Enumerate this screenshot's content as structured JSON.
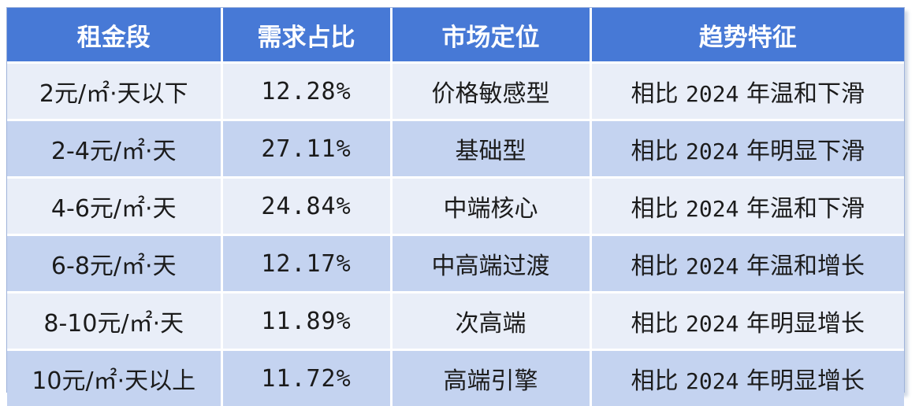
{
  "table": {
    "headers": [
      "租金段",
      "需求占比",
      "市场定位",
      "趋势特征"
    ],
    "rows": [
      {
        "range": "2元/㎡·天以下",
        "share": "12.28%",
        "position": "价格敏感型",
        "trend_prefix": "相比",
        "trend_year": "2024",
        "trend_suffix": "年温和下滑"
      },
      {
        "range": "2-4元/㎡·天",
        "share": "27.11%",
        "position": "基础型",
        "trend_prefix": "相比",
        "trend_year": "2024",
        "trend_suffix": "年明显下滑"
      },
      {
        "range": "4-6元/㎡·天",
        "share": "24.84%",
        "position": "中端核心",
        "trend_prefix": "相比",
        "trend_year": "2024",
        "trend_suffix": "年温和下滑"
      },
      {
        "range": "6-8元/㎡·天",
        "share": "12.17%",
        "position": "中高端过渡",
        "trend_prefix": "相比",
        "trend_year": "2024",
        "trend_suffix": "年温和增长"
      },
      {
        "range": "8-10元/㎡·天",
        "share": "11.89%",
        "position": "次高端",
        "trend_prefix": "相比",
        "trend_year": "2024",
        "trend_suffix": "年明显增长"
      },
      {
        "range": "10元/㎡·天以上",
        "share": "11.72%",
        "position": "高端引擎",
        "trend_prefix": "相比",
        "trend_year": "2024",
        "trend_suffix": "年明显增长"
      }
    ]
  },
  "colors": {
    "header_bg": "#4779d6",
    "row_light": "#e9eef8",
    "row_dark": "#c4d3f0"
  }
}
